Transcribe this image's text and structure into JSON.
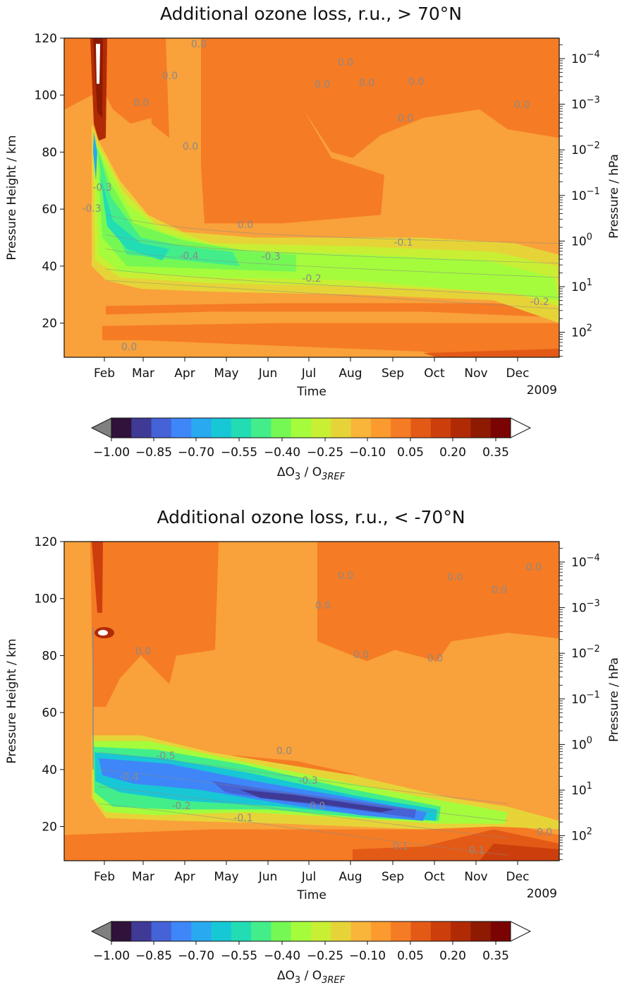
{
  "colors": {
    "bg_level_0_05": "#f9a13a",
    "level_0_10": "#f68a2c",
    "level_0_15": "#f07121",
    "ramp": [
      "#30123b",
      "#3f3a96",
      "#4562d6",
      "#3f86f8",
      "#28a9f0",
      "#18c7d5",
      "#22dcb4",
      "#43ed8a",
      "#76f854",
      "#a4fc3c",
      "#c8ef34",
      "#e6d338",
      "#f9b43a",
      "#fb9a2e",
      "#f57b24",
      "#e35a17",
      "#cc3f0c",
      "#b02b05",
      "#8e1a02",
      "#7a0403"
    ],
    "under": "#808080",
    "over": "#ffffff",
    "contour_line": "#8a8a8a"
  },
  "charts": [
    {
      "title": "Additional ozone loss, r.u., > 70°N",
      "xlabel": "Time",
      "ylabel_left": "Pressure Height / km",
      "ylabel_right": "Pressure / hPa",
      "year_label": "2009",
      "months": [
        "Feb",
        "Mar",
        "Apr",
        "May",
        "Jun",
        "Jul",
        "Aug",
        "Sep",
        "Oct",
        "Nov",
        "Dec"
      ],
      "y_ticks": [
        "120",
        "100",
        "80",
        "60",
        "40",
        "20"
      ],
      "p_ticks": [
        {
          "base": "10",
          "exp": "−4"
        },
        {
          "base": "10",
          "exp": "−3"
        },
        {
          "base": "10",
          "exp": "−2"
        },
        {
          "base": "10",
          "exp": "−1"
        },
        {
          "base": "10",
          "exp": "0"
        },
        {
          "base": "10",
          "exp": "1"
        },
        {
          "base": "10",
          "exp": "2"
        }
      ],
      "contour_labels": [
        "0.0",
        "0.0",
        "0.0",
        "0.0",
        "0.0",
        "0.0",
        "0.0",
        "0.0",
        "0.0",
        "0.0",
        "0.0",
        "-0.3",
        "-0.3",
        "-0.4",
        "-0.3",
        "-0.2",
        "-0.1",
        "-0.2",
        "0.0"
      ],
      "colorbar": {
        "ticks": [
          "−1.00",
          "−0.85",
          "−0.70",
          "−0.55",
          "−0.40",
          "−0.25",
          "−0.10",
          "0.05",
          "0.20",
          "0.35"
        ],
        "label_main": "ΔO",
        "label_sub1": "3",
        "label_mid": " / O",
        "label_sub2": "3REF"
      }
    },
    {
      "title": "Additional ozone loss, r.u., < -70°N",
      "xlabel": "Time",
      "ylabel_left": "Pressure Height / km",
      "ylabel_right": "Pressure / hPa",
      "year_label": "2009",
      "months": [
        "Feb",
        "Mar",
        "Apr",
        "May",
        "Jun",
        "Jul",
        "Aug",
        "Sep",
        "Oct",
        "Nov",
        "Dec"
      ],
      "y_ticks": [
        "120",
        "100",
        "80",
        "60",
        "40",
        "20"
      ],
      "p_ticks": [
        {
          "base": "10",
          "exp": "−4"
        },
        {
          "base": "10",
          "exp": "−3"
        },
        {
          "base": "10",
          "exp": "−2"
        },
        {
          "base": "10",
          "exp": "−1"
        },
        {
          "base": "10",
          "exp": "0"
        },
        {
          "base": "10",
          "exp": "1"
        },
        {
          "base": "10",
          "exp": "2"
        }
      ],
      "contour_labels": [
        "0.0",
        "0.0",
        "0.0",
        "0.0",
        "0.0",
        "0.0",
        "0.0",
        "0.0",
        "0.0",
        "-0.5",
        "-0.4",
        "-0.2",
        "-0.3",
        "-0.1",
        "0.0",
        "0.1",
        "0.1",
        "0.0"
      ],
      "colorbar": {
        "ticks": [
          "−1.00",
          "−0.85",
          "−0.70",
          "−0.55",
          "−0.40",
          "−0.25",
          "−0.10",
          "0.05",
          "0.20",
          "0.35"
        ],
        "label_main": "ΔO",
        "label_sub1": "3",
        "label_mid": " / O",
        "label_sub2": "3REF"
      }
    }
  ],
  "chart_data": [
    {
      "type": "heatmap",
      "title": "Additional ozone loss, r.u., > 70°N",
      "xlabel": "Time",
      "ylabel": "Pressure Height / km",
      "ylabel_right": "Pressure / hPa",
      "year": "2009",
      "x_ticks": [
        "Feb",
        "Mar",
        "Apr",
        "May",
        "Jun",
        "Jul",
        "Aug",
        "Sep",
        "Oct",
        "Nov",
        "Dec"
      ],
      "y_ticks": [
        20,
        40,
        60,
        80,
        100,
        120
      ],
      "ylim": [
        8,
        120
      ],
      "colorbar": {
        "label": "ΔO3 / O3REF",
        "ticks": [
          -1.0,
          -0.85,
          -0.7,
          -0.55,
          -0.4,
          -0.25,
          -0.1,
          0.05,
          0.2,
          0.35
        ],
        "range": [
          -1.0,
          0.4
        ],
        "extend": "both"
      },
      "features": [
        {
          "region": "early Feb, 80-120 km",
          "value": 0.35,
          "note": "positive maximum"
        },
        {
          "region": "late Jan–Apr, 35-60 km",
          "value": -0.4
        },
        {
          "region": "Apr–Nov, 30-48 km",
          "value": -0.25
        },
        {
          "region": "background",
          "value": 0.0
        }
      ]
    },
    {
      "type": "heatmap",
      "title": "Additional ozone loss, r.u., < -70°N",
      "xlabel": "Time",
      "ylabel": "Pressure Height / km",
      "ylabel_right": "Pressure / hPa",
      "year": "2009",
      "x_ticks": [
        "Feb",
        "Mar",
        "Apr",
        "May",
        "Jun",
        "Jul",
        "Aug",
        "Sep",
        "Oct",
        "Nov",
        "Dec"
      ],
      "y_ticks": [
        20,
        40,
        60,
        80,
        100,
        120
      ],
      "ylim": [
        8,
        120
      ],
      "colorbar": {
        "label": "ΔO3 / O3REF",
        "ticks": [
          -1.0,
          -0.85,
          -0.7,
          -0.55,
          -0.4,
          -0.25,
          -0.1,
          0.05,
          0.2,
          0.35
        ],
        "range": [
          -1.0,
          0.4
        ],
        "extend": "both"
      },
      "features": [
        {
          "region": "Feb, 30-50 km descending to Oct 20-27 km",
          "value": -0.6,
          "note": "ozone loss band"
        },
        {
          "region": "Jun–Sep core, ~25-33 km",
          "value": -0.9
        },
        {
          "region": "early Feb, 85-90 km",
          "value": 0.35,
          "note": "positive maximum"
        },
        {
          "region": "background",
          "value": 0.0
        }
      ]
    }
  ]
}
